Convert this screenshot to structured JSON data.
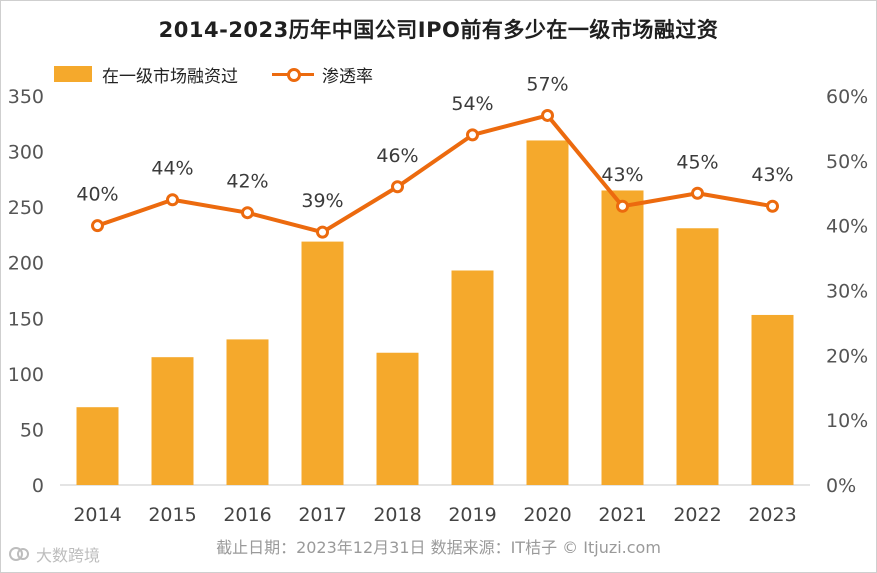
{
  "chart_data": {
    "type": "bar",
    "title": "2014-2023历年中国公司IPO前有多少在一级市场融过资",
    "categories": [
      "2014",
      "2015",
      "2016",
      "2017",
      "2018",
      "2019",
      "2020",
      "2021",
      "2022",
      "2023"
    ],
    "series": [
      {
        "name": "在一级市场融资过",
        "type": "bar",
        "axis": "left",
        "values": [
          70,
          115,
          131,
          219,
          119,
          193,
          310,
          265,
          231,
          153
        ]
      },
      {
        "name": "渗透率",
        "type": "line",
        "axis": "right",
        "values": [
          40,
          44,
          42,
          39,
          46,
          54,
          57,
          43,
          45,
          43
        ],
        "labels": [
          "40%",
          "44%",
          "42%",
          "39%",
          "46%",
          "54%",
          "57%",
          "43%",
          "45%",
          "43%"
        ]
      }
    ],
    "ylim": [
      0,
      350
    ],
    "y_ticks": [
      0,
      50,
      100,
      150,
      200,
      250,
      300,
      350
    ],
    "y2lim": [
      0,
      60
    ],
    "y2_ticks": [
      "0%",
      "10%",
      "20%",
      "30%",
      "40%",
      "50%",
      "60%"
    ],
    "grid": false,
    "legend_position": "top-left",
    "colors": {
      "bar": "#F5A92C",
      "line": "#EC6A0E"
    }
  },
  "footer": "截止日期：2023年12月31日    数据来源：IT桔子 © Itjuzi.com",
  "watermark": "大数跨境"
}
